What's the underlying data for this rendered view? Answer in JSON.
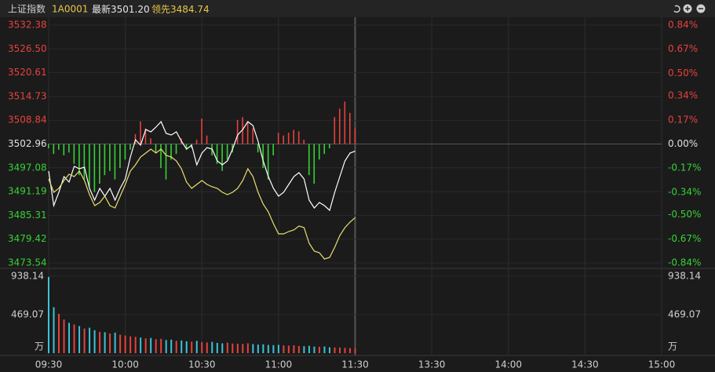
{
  "header": {
    "name": "上证指数",
    "code": "1A0001",
    "latest_label": "最新",
    "latest": "3501.20",
    "lead_label": "领先",
    "lead": "3484.74"
  },
  "chart_data": [
    {
      "type": "line",
      "x": [
        0,
        2,
        4,
        6,
        8,
        10,
        12,
        14,
        16,
        18,
        20,
        22,
        24,
        26,
        28,
        30,
        32,
        34,
        36,
        38,
        40,
        42,
        44,
        46,
        48,
        50,
        52,
        54,
        56,
        58,
        60,
        62,
        64,
        66,
        68,
        70,
        72,
        74,
        76,
        78,
        80,
        82,
        84,
        86,
        88,
        90,
        92,
        94,
        96,
        98,
        100,
        102,
        104,
        106,
        108,
        110,
        112,
        114,
        116,
        118,
        120
      ],
      "series": [
        {
          "color": "#ffffff",
          "values": [
            3496.26,
            3487.71,
            3491.02,
            3494.9,
            3493.54,
            3497.42,
            3496.84,
            3497.23,
            3491.99,
            3489.07,
            3491.99,
            3490.04,
            3491.99,
            3489.07,
            3491.99,
            3494.32,
            3499.75,
            3504.03,
            3502.67,
            3506.55,
            3505.97,
            3507.13,
            3508.49,
            3505.58,
            3505.19,
            3505.97,
            3503.64,
            3501.7,
            3502.67,
            3497.81,
            3500.73,
            3502.08,
            3501.7,
            3498.78,
            3497.81,
            3498.78,
            3501.7,
            3505.19,
            3506.55,
            3508.49,
            3507.52,
            3503.64,
            3498.78,
            3494.9,
            3491.99,
            3490.04,
            3491.02,
            3492.96,
            3494.9,
            3495.87,
            3494.32,
            3489.07,
            3487.13,
            3488.49,
            3487.71,
            3486.55,
            3491.02,
            3494.9,
            3498.78,
            3500.73,
            3501.2
          ]
        },
        {
          "color": "#e8e070",
          "values": [
            3494.32,
            3491.02,
            3491.99,
            3493.93,
            3495.48,
            3494.9,
            3496.26,
            3493.93,
            3490.43,
            3487.71,
            3488.49,
            3490.04,
            3487.71,
            3487.13,
            3490.04,
            3492.96,
            3496.26,
            3497.81,
            3499.75,
            3500.73,
            3501.7,
            3500.73,
            3501.7,
            3500.14,
            3499.75,
            3498.78,
            3496.84,
            3493.54,
            3491.99,
            3492.96,
            3493.93,
            3492.96,
            3492.37,
            3491.99,
            3491.02,
            3490.43,
            3491.02,
            3491.99,
            3493.93,
            3496.84,
            3494.9,
            3491.02,
            3488.1,
            3486.16,
            3483.25,
            3480.72,
            3480.72,
            3481.31,
            3481.69,
            3482.66,
            3482.28,
            3478.39,
            3476.45,
            3476.06,
            3474.51,
            3474.9,
            3477.42,
            3480.33,
            3482.28,
            3483.64,
            3484.74
          ]
        },
        {
          "type": "bar",
          "axis": "y2",
          "values": [
            -0.03,
            -0.07,
            -0.04,
            -0.08,
            -0.06,
            -0.14,
            -0.22,
            -0.25,
            -0.3,
            -0.34,
            -0.28,
            -0.22,
            -0.19,
            -0.25,
            -0.17,
            -0.11,
            -0.04,
            0.07,
            0.16,
            0.11,
            0.04,
            -0.06,
            -0.17,
            -0.25,
            -0.11,
            -0.07,
            0.04,
            -0.04,
            -0.03,
            0.03,
            0.18,
            0.06,
            -0.08,
            -0.14,
            -0.19,
            -0.11,
            -0.06,
            0.17,
            0.19,
            0.16,
            0.11,
            -0.06,
            -0.17,
            -0.25,
            -0.08,
            0.08,
            0.06,
            0.08,
            0.1,
            0.09,
            0.03,
            -0.22,
            -0.28,
            -0.11,
            -0.07,
            -0.03,
            0.19,
            0.25,
            0.3,
            0.22,
            0.11
          ]
        }
      ],
      "up_color": "#e8413c",
      "down_color": "#35d235",
      "ylim": [
        3473.54,
        3532.38
      ],
      "yticks": [
        3532.38,
        {
          "value": 3526.5,
          "label": "3526.50"
        },
        3520.61,
        3514.73,
        3508.84,
        3502.96,
        3497.08,
        3491.19,
        3485.31,
        3479.42,
        3473.54
      ],
      "y2lim": [
        -0.84,
        0.84
      ],
      "y2ticks": [
        {
          "value": 0.84,
          "label": "0.84%"
        },
        {
          "value": 0.67,
          "label": "0.67%"
        },
        {
          "value": 0.5,
          "label": "0.50%"
        },
        {
          "value": 0.34,
          "label": "0.34%"
        },
        {
          "value": 0.17,
          "label": "0.17%"
        },
        {
          "value": 0,
          "label": "0.00%"
        },
        {
          "value": -0.17,
          "label": "-0.17%"
        },
        {
          "value": -0.34,
          "label": "-0.34%"
        },
        {
          "value": -0.5,
          "label": "-0.50%"
        },
        {
          "value": -0.67,
          "label": "-0.67%"
        },
        {
          "value": -0.84,
          "label": "-0.84%"
        }
      ],
      "grid": true
    },
    {
      "type": "bar",
      "values": [
        930,
        560,
        480,
        410,
        370,
        350,
        330,
        300,
        310,
        280,
        260,
        255,
        240,
        250,
        225,
        215,
        205,
        200,
        190,
        180,
        185,
        170,
        175,
        160,
        165,
        150,
        155,
        145,
        140,
        150,
        135,
        130,
        138,
        125,
        120,
        128,
        118,
        115,
        112,
        120,
        110,
        105,
        108,
        100,
        98,
        102,
        95,
        92,
        96,
        88,
        85,
        90,
        80,
        78,
        82,
        72,
        70,
        68,
        65,
        62,
        58
      ],
      "up_color": "#e8413c",
      "down_color": "#3bc3d8",
      "ylim": [
        0,
        938.14
      ],
      "yticks": [
        469.07,
        938.14
      ],
      "unit": "万",
      "xlim": [
        0,
        240
      ],
      "xticks": [
        {
          "value": 0,
          "label": "09:30"
        },
        {
          "value": 30,
          "label": "10:00"
        },
        {
          "value": 60,
          "label": "10:30"
        },
        {
          "value": 90,
          "label": "11:00"
        },
        {
          "value": 120,
          "label": "11:30"
        },
        {
          "value": 150,
          "label": "13:30"
        },
        {
          "value": 180,
          "label": "14:00"
        },
        {
          "value": 210,
          "label": "14:30"
        },
        {
          "value": 240,
          "label": "15:00"
        }
      ],
      "grid": true
    }
  ]
}
